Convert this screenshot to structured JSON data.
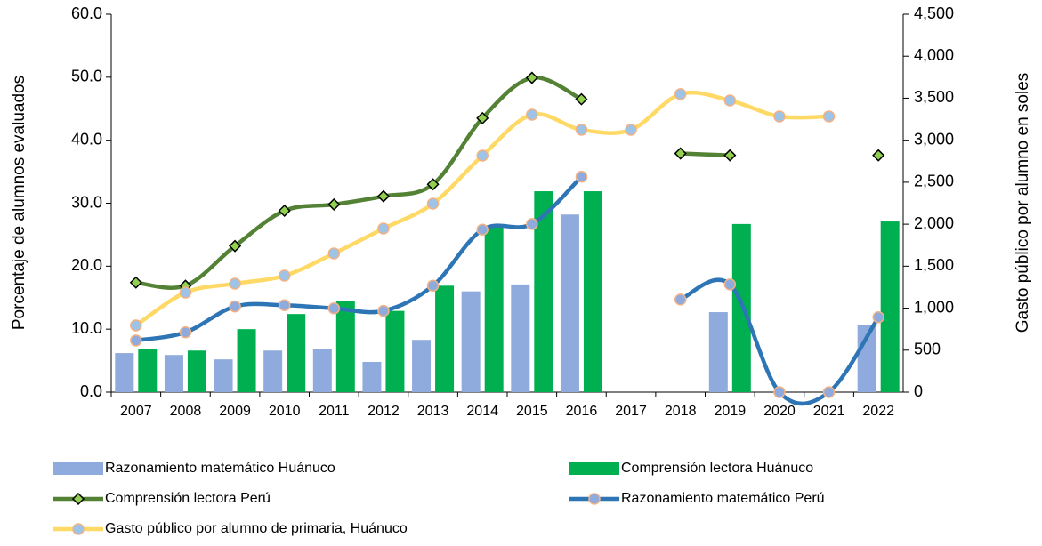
{
  "chart_data": {
    "type": "bar",
    "y_label": "Porcentaje de alumnos evaluados",
    "y2_label": "Gasto público por alumno en soles",
    "categories": [
      "2007",
      "2008",
      "2009",
      "2010",
      "2011",
      "2012",
      "2013",
      "2014",
      "2015",
      "2016",
      "2017",
      "2018",
      "2019",
      "2020",
      "2021",
      "2022"
    ],
    "ylim": [
      0,
      60
    ],
    "yticks": [
      {
        "value": 0,
        "label": "0.0"
      },
      {
        "value": 10,
        "label": "10.0"
      },
      {
        "value": 20,
        "label": "20.0"
      },
      {
        "value": 30,
        "label": "30.0"
      },
      {
        "value": 40,
        "label": "40.0"
      },
      {
        "value": 50,
        "label": "50.0"
      },
      {
        "value": 60,
        "label": "60.0"
      }
    ],
    "y2lim": [
      0,
      4500
    ],
    "y2ticks": [
      0,
      500,
      {
        "value": 1000,
        "label": "1,000"
      },
      {
        "value": 1500,
        "label": "1,500"
      },
      {
        "value": 2000,
        "label": "2,000"
      },
      {
        "value": 2500,
        "label": "2,500"
      },
      {
        "value": 3000,
        "label": "3,000"
      },
      {
        "value": 3500,
        "label": "3,500"
      },
      {
        "value": 4000,
        "label": "4,000"
      },
      {
        "value": 4500,
        "label": "4,500"
      }
    ],
    "series": [
      {
        "name": "Razonamiento matemático Huánuco",
        "type": "bar",
        "color": "#8faadc",
        "values": [
          6.2,
          5.9,
          5.2,
          6.6,
          6.8,
          4.8,
          8.3,
          16.0,
          17.1,
          28.2,
          null,
          null,
          12.7,
          null,
          null,
          10.7
        ]
      },
      {
        "name": "Comprensión lectora Huánuco",
        "type": "bar",
        "color": "#00b050",
        "values": [
          6.9,
          6.6,
          10.0,
          12.4,
          14.5,
          12.9,
          16.9,
          26.4,
          31.9,
          31.9,
          null,
          null,
          26.7,
          null,
          null,
          27.1
        ]
      },
      {
        "name": "Comprensión lectora Perú",
        "type": "line",
        "marker": "diamond",
        "color": "#548235",
        "marker_color": "#92d050",
        "values": [
          17.4,
          16.9,
          23.2,
          28.8,
          29.8,
          31.1,
          33.0,
          43.5,
          49.9,
          46.5,
          null,
          37.9,
          37.6,
          null,
          null,
          37.6
        ]
      },
      {
        "name": "Razonamiento matemático Perú",
        "type": "line",
        "marker": "circle",
        "color": "#2e75b6",
        "marker_color": "#8faadc",
        "values": [
          8.2,
          9.5,
          13.6,
          13.8,
          13.3,
          12.9,
          16.9,
          25.8,
          26.7,
          34.2,
          null,
          14.7,
          17.1,
          0,
          0,
          11.9
        ]
      },
      {
        "name": "Gasto público por alumno de primaria, Huánuco",
        "type": "line",
        "marker": "circle",
        "axis": "y2",
        "color": "#ffd966",
        "marker_color": "#9dc3e6",
        "values": [
          794,
          1186,
          1292,
          1387,
          1652,
          1948,
          2245,
          2817,
          3304,
          3124,
          3124,
          3548,
          3473,
          3283,
          3283,
          null
        ]
      }
    ]
  }
}
